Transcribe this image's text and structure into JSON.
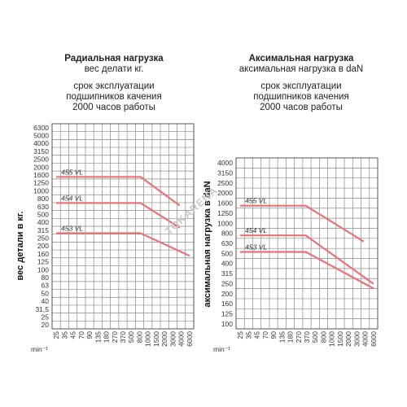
{
  "charts": [
    {
      "heading": {
        "title": "Радиальная нагрузка",
        "subtitle": "вес делати кг.",
        "lines": [
          "срок эксплуатации",
          "подшипников качения",
          "2000 часов работы"
        ]
      },
      "ylabel": "вес детали в кг.",
      "xunit": "min⁻¹"
    },
    {
      "heading": {
        "title": "Аксимальная нагрузка",
        "subtitle": "аксимальная нагрузка в daN",
        "lines": [
          "срок эксплуатации",
          "подшипников качения",
          "2000 часов работы"
        ]
      },
      "ylabel": "аксимальная нагрузка в daN",
      "xunit": "min⁻¹"
    }
  ],
  "watermark": "TOKARENA",
  "colors": {
    "grid": "#8a8a8a",
    "line": "#e8747a",
    "frame": "#555555"
  },
  "chart_data": [
    {
      "type": "line",
      "scale": "log",
      "x_ticks": [
        "25",
        "35",
        "45",
        "70",
        "90",
        "135",
        "180",
        "270",
        "370",
        "500",
        "800",
        "1000",
        "1500",
        "2000",
        "3000",
        "4000",
        "6000"
      ],
      "y_ticks": [
        "6300",
        "5000",
        "4000",
        "3150",
        "2500",
        "2000",
        "1600",
        "1250",
        "1000",
        "800",
        "630",
        "500",
        "400",
        "315",
        "250",
        "200",
        "160",
        "125",
        "100",
        "80",
        "63",
        "50",
        "40",
        "31,5",
        "25",
        "20"
      ],
      "series": [
        {
          "name": "455 VL",
          "x": [
            25,
            800,
            4000
          ],
          "y": [
            1500,
            1500,
            650
          ]
        },
        {
          "name": "454 VL",
          "x": [
            25,
            800,
            4000
          ],
          "y": [
            700,
            700,
            340
          ]
        },
        {
          "name": "453 VL",
          "x": [
            25,
            800,
            6000
          ],
          "y": [
            290,
            290,
            150
          ]
        }
      ]
    },
    {
      "type": "line",
      "scale": "log",
      "x_ticks": [
        "25",
        "35",
        "45",
        "70",
        "90",
        "135",
        "180",
        "270",
        "370",
        "500",
        "800",
        "1000",
        "1500",
        "2000",
        "3000",
        "4000",
        "6000"
      ],
      "y_ticks": [
        "4000",
        "3150",
        "2500",
        "2000",
        "1600",
        "1250",
        "1000",
        "800",
        "630",
        "500",
        "400",
        "315",
        "250",
        "200",
        "160",
        "125",
        "100"
      ],
      "series": [
        {
          "name": "455 VL",
          "x": [
            25,
            370,
            4000
          ],
          "y": [
            1500,
            1500,
            660
          ]
        },
        {
          "name": "454 VL",
          "x": [
            25,
            370,
            6000
          ],
          "y": [
            760,
            760,
            250
          ]
        },
        {
          "name": "453 VL",
          "x": [
            25,
            370,
            6000
          ],
          "y": [
            520,
            520,
            225
          ]
        }
      ]
    }
  ]
}
